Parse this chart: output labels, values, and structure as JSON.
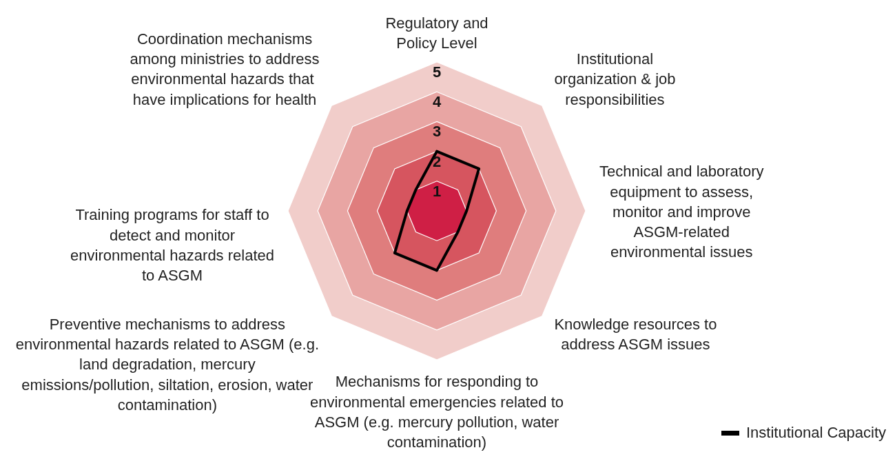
{
  "chart_data": {
    "type": "radar",
    "categories": [
      "Regulatory and Policy Level",
      "Institutional organization & job responsibilities",
      "Technical and laboratory equipment to assess, monitor and improve ASGM-related environmental issues",
      "Knowledge resources to address ASGM issues",
      "Mechanisms for responding to environmental emergencies related to ASGM (e.g. mercury pollution, water contamination)",
      "Preventive mechanisms to address environmental hazards related to ASGM (e.g. land degradation, mercury emissions/pollution, siltation,  erosion, water contamination)",
      "Training programs for staff to detect and monitor environmental hazards related to ASGM",
      "Coordination mechanisms among ministries to address environmental hazards that  have implications for health"
    ],
    "series": [
      {
        "name": "Institutional Capacity",
        "color": "#000000",
        "values": [
          2,
          2,
          1,
          1,
          2,
          2,
          1,
          1
        ]
      }
    ],
    "ylim": [
      0,
      5
    ],
    "yticks": [
      1,
      2,
      3,
      4,
      5
    ],
    "grid": true,
    "legend": "bottom right",
    "marker": "none",
    "line_style": "solid"
  }
}
